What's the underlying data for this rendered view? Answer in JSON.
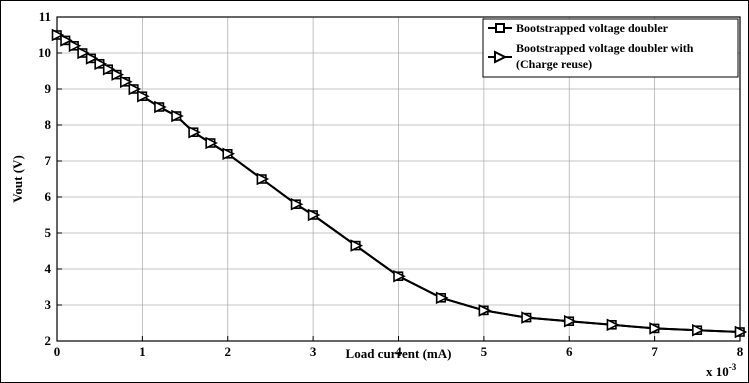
{
  "chart_data": {
    "type": "line",
    "xlabel": "Load current (mA)",
    "ylabel": "Vout (V)",
    "x_multiplier_base": "x 10",
    "x_multiplier_exp": "-3",
    "xlim": [
      0,
      8
    ],
    "ylim": [
      2,
      11
    ],
    "xticks": [
      "0",
      "1",
      "2",
      "3",
      "4",
      "5",
      "6",
      "7",
      "8"
    ],
    "yticks": [
      "2",
      "3",
      "4",
      "5",
      "6",
      "7",
      "8",
      "9",
      "10",
      "11"
    ],
    "grid": true,
    "legend_position": "top-right",
    "series": [
      {
        "name": "Bootstrapped voltage doubler",
        "marker": "square",
        "x": [
          0,
          0.1,
          0.2,
          0.3,
          0.4,
          0.5,
          0.6,
          0.7,
          0.8,
          0.9,
          1.0,
          1.2,
          1.4,
          1.6,
          1.8,
          2.0,
          2.4,
          2.8,
          3.0,
          3.5,
          4.0,
          4.5,
          5.0,
          5.5,
          6.0,
          6.5,
          7.0,
          7.5,
          8.0
        ],
        "y": [
          10.5,
          10.35,
          10.2,
          10.0,
          9.85,
          9.7,
          9.55,
          9.4,
          9.2,
          9.0,
          8.8,
          8.5,
          8.25,
          7.8,
          7.5,
          7.2,
          6.5,
          5.8,
          5.5,
          4.65,
          3.8,
          3.2,
          2.85,
          2.65,
          2.55,
          2.45,
          2.35,
          2.3,
          2.25
        ]
      },
      {
        "name": "Bootstrapped voltage doubler with",
        "name_line2": "(Charge reuse)",
        "marker": "triangle-right",
        "x": [
          0,
          0.1,
          0.2,
          0.3,
          0.4,
          0.5,
          0.6,
          0.7,
          0.8,
          0.9,
          1.0,
          1.2,
          1.4,
          1.6,
          1.8,
          2.0,
          2.4,
          2.8,
          3.0,
          3.5,
          4.0,
          4.5,
          5.0,
          5.5,
          6.0,
          6.5,
          7.0,
          7.5,
          8.0
        ],
        "y": [
          10.5,
          10.35,
          10.2,
          10.0,
          9.85,
          9.7,
          9.55,
          9.4,
          9.2,
          9.0,
          8.8,
          8.5,
          8.25,
          7.8,
          7.5,
          7.2,
          6.5,
          5.8,
          5.5,
          4.65,
          3.8,
          3.2,
          2.85,
          2.65,
          2.55,
          2.45,
          2.35,
          2.3,
          2.25
        ]
      }
    ]
  }
}
